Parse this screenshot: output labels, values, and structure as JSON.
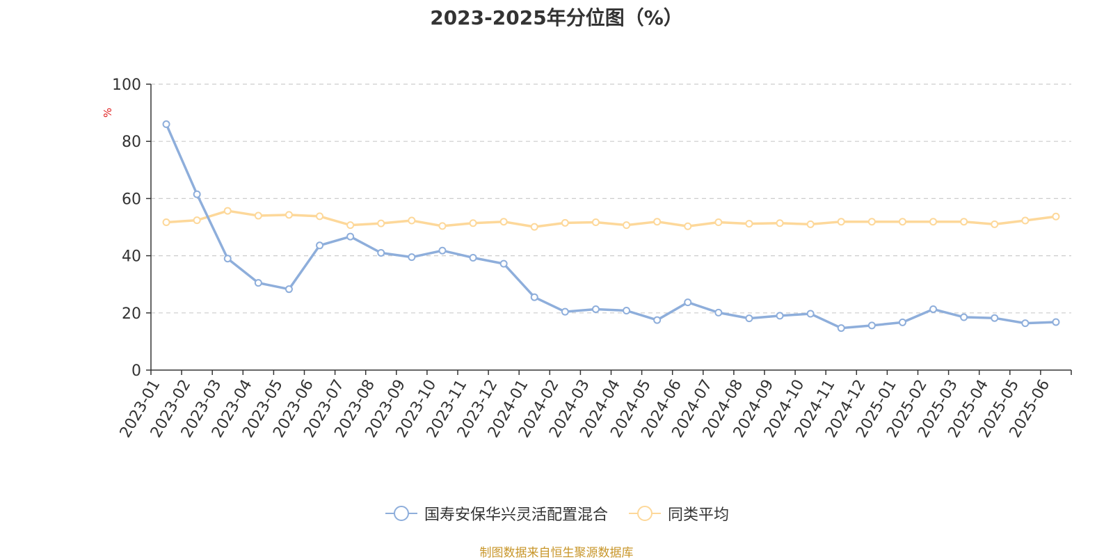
{
  "chart_data": {
    "type": "line",
    "title": "2023-2025年分位图（%）",
    "ylabel": "%",
    "xlabel": "",
    "ylim": [
      0,
      100
    ],
    "yticks": [
      0,
      20,
      40,
      60,
      80,
      100
    ],
    "grid": true,
    "legend_position": "bottom",
    "categories": [
      "2023-01",
      "2023-02",
      "2023-03",
      "2023-04",
      "2023-05",
      "2023-06",
      "2023-07",
      "2023-08",
      "2023-09",
      "2023-10",
      "2023-11",
      "2023-12",
      "2024-01",
      "2024-02",
      "2024-03",
      "2024-04",
      "2024-05",
      "2024-06",
      "2024-07",
      "2024-08",
      "2024-09",
      "2024-10",
      "2024-11",
      "2024-12",
      "2025-01",
      "2025-02",
      "2025-03",
      "2025-04",
      "2025-05",
      "2025-06"
    ],
    "series": [
      {
        "name": "国寿安保华兴灵活配置混合",
        "color": "#8eaedb",
        "values": [
          86,
          61.5,
          39,
          30.5,
          28.3,
          43.6,
          46.7,
          41,
          39.5,
          41.8,
          39.3,
          37.2,
          25.5,
          20.4,
          21.3,
          20.8,
          17.5,
          23.7,
          20.1,
          18.1,
          19,
          19.7,
          14.7,
          15.6,
          16.7,
          21.3,
          18.5,
          18.2,
          16.4,
          16.8
        ]
      },
      {
        "name": "同类平均",
        "color": "#fdd89a",
        "values": [
          51.7,
          52.4,
          55.7,
          54,
          54.3,
          53.8,
          50.7,
          51.3,
          52.3,
          50.4,
          51.4,
          51.9,
          50.1,
          51.5,
          51.7,
          50.7,
          51.9,
          50.3,
          51.7,
          51.2,
          51.4,
          51,
          51.9,
          51.9,
          51.9,
          51.9,
          51.9,
          51,
          52.3,
          53.7
        ]
      }
    ]
  },
  "source_note": "制图数据来自恒生聚源数据库"
}
